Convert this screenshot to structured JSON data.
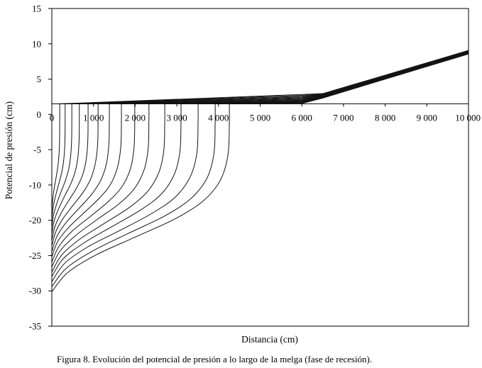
{
  "figure": {
    "caption": "Figura 8. Evolución del potencial de presión a lo largo de la melga (fase de recesión)."
  },
  "colors": {
    "line": "#141414",
    "axis": "#000000",
    "background": "#ffffff"
  },
  "chart_data": {
    "type": "line",
    "title": "",
    "xlabel": "Distancia (cm)",
    "ylabel": "Potencial de presión (cm)",
    "xlim": [
      0,
      10000
    ],
    "ylim": [
      -35,
      15
    ],
    "grid": false,
    "xticks": {
      "values": [
        0,
        1000,
        2000,
        3000,
        4000,
        5000,
        6000,
        7000,
        8000,
        9000,
        10000
      ],
      "labels": [
        "0",
        "1 000",
        "2 000",
        "3 000",
        "4 000",
        "5 000",
        "6 000",
        "7 000",
        "8 000",
        "9 000",
        "10 000"
      ]
    },
    "yticks": {
      "labels": [
        "15",
        "10",
        "5",
        "0",
        "-5",
        "-10",
        "-20",
        "-25",
        "-30",
        "-35"
      ]
    },
    "series": [
      {
        "x": [
          0,
          17,
          47,
          89,
          131,
          161,
          180,
          188,
          190,
          190,
          6000,
          6500,
          10000
        ],
        "y": [
          -17.1,
          -15.4,
          -13.7,
          -12.1,
          -10.5,
          -8.9,
          -7.0,
          -4.7,
          -1.8,
          0,
          1.47,
          1.6,
          8.4
        ]
      },
      {
        "x": [
          0,
          28,
          79,
          150,
          220,
          271,
          303,
          317,
          320,
          320,
          6000,
          6500,
          10000
        ],
        "y": [
          -18.4,
          -16.5,
          -14.8,
          -13.0,
          -11.3,
          -9.6,
          -7.5,
          -5.1,
          -2.0,
          0,
          1.33,
          1.55,
          8.36
        ]
      },
      {
        "x": [
          0,
          42,
          119,
          225,
          330,
          407,
          455,
          476,
          480,
          480,
          6000,
          6500,
          10000
        ],
        "y": [
          -19.5,
          -17.5,
          -15.7,
          -13.8,
          -12.0,
          -10.2,
          -8.0,
          -5.4,
          -2.1,
          0,
          1.19,
          1.5,
          8.32
        ]
      },
      {
        "x": [
          0,
          58,
          164,
          309,
          454,
          560,
          626,
          655,
          660,
          660,
          6000,
          6500,
          10000
        ],
        "y": [
          -20.5,
          -18.4,
          -16.5,
          -14.5,
          -12.6,
          -10.7,
          -8.4,
          -5.6,
          -2.2,
          0,
          1.06,
          1.45,
          8.28
        ]
      },
      {
        "x": [
          0,
          77,
          216,
          407,
          599,
          738,
          825,
          863,
          870,
          870,
          6000,
          6500,
          10000
        ],
        "y": [
          -21.5,
          -19.3,
          -17.3,
          -15.2,
          -13.2,
          -11.2,
          -8.8,
          -5.9,
          -2.3,
          0,
          0.94,
          1.4,
          8.24
        ]
      },
      {
        "x": [
          0,
          98,
          275,
          519,
          764,
          941,
          1052,
          1101,
          1110,
          1110,
          6000,
          6500,
          10000
        ],
        "y": [
          -22.4,
          -20.1,
          -18.0,
          -15.9,
          -13.8,
          -11.7,
          -9.1,
          -6.2,
          -2.4,
          0,
          0.82,
          1.35,
          8.2
        ]
      },
      {
        "x": [
          0,
          121,
          342,
          646,
          949,
          1170,
          1308,
          1369,
          1380,
          1380,
          6000,
          6500,
          10000
        ],
        "y": [
          -23.3,
          -20.9,
          -18.7,
          -16.5,
          -14.3,
          -12.1,
          -9.5,
          -6.4,
          -2.5,
          0,
          0.7,
          1.3,
          8.16
        ]
      },
      {
        "x": [
          0,
          147,
          414,
          782,
          1149,
          1416,
          1583,
          1657,
          1670,
          1670,
          6000,
          6500,
          10000
        ],
        "y": [
          -24.1,
          -21.6,
          -19.4,
          -17.1,
          -14.8,
          -12.6,
          -9.8,
          -6.6,
          -2.6,
          0,
          0.6,
          1.25,
          8.12
        ]
      },
      {
        "x": [
          0,
          175,
          494,
          931,
          1369,
          1688,
          1887,
          1974,
          1990,
          1990,
          6000,
          6500,
          10000
        ],
        "y": [
          -24.9,
          -22.4,
          -20.0,
          -17.7,
          -15.3,
          -13.0,
          -10.2,
          -6.8,
          -2.6,
          0,
          0.5,
          1.2,
          8.08
        ]
      },
      {
        "x": [
          0,
          205,
          578,
          1090,
          1603,
          1976,
          2209,
          2311,
          2330,
          2330,
          6000,
          6500,
          10000
        ],
        "y": [
          -25.7,
          -23.1,
          -20.7,
          -18.2,
          -15.8,
          -13.4,
          -10.5,
          -7.1,
          -2.7,
          0,
          0.4,
          1.15,
          8.04
        ]
      },
      {
        "x": [
          0,
          238,
          672,
          1268,
          1864,
          2298,
          2569,
          2688,
          2710,
          2710,
          6000,
          6500,
          10000
        ],
        "y": [
          -26.5,
          -23.8,
          -21.3,
          -18.8,
          -16.3,
          -13.8,
          -10.8,
          -7.3,
          -2.8,
          0,
          0.32,
          1.1,
          8.0
        ]
      },
      {
        "x": [
          0,
          273,
          769,
          1451,
          2133,
          2629,
          2939,
          3075,
          3100,
          3100,
          6000,
          6500,
          10000
        ],
        "y": [
          -27.2,
          -24.4,
          -21.9,
          -19.3,
          -16.7,
          -14.2,
          -11.1,
          -7.5,
          -2.9,
          0,
          0.24,
          1.05,
          7.96
        ]
      },
      {
        "x": [
          0,
          309,
          870,
          1643,
          2415,
          2976,
          3327,
          3482,
          3510,
          3510,
          6000,
          6500,
          10000
        ],
        "y": [
          -28.0,
          -25.1,
          -22.5,
          -19.9,
          -17.2,
          -14.6,
          -11.4,
          -7.7,
          -3.0,
          0,
          0.17,
          1.0,
          7.92
        ]
      },
      {
        "x": [
          0,
          345,
          972,
          1835,
          2697,
          3324,
          3716,
          3889,
          3920,
          3920,
          6000,
          6500,
          10000
        ],
        "y": [
          -28.8,
          -25.9,
          -23.2,
          -20.4,
          -17.7,
          -15.0,
          -11.8,
          -7.9,
          -3.1,
          0,
          0.1,
          0.95,
          7.88
        ]
      },
      {
        "x": [
          0,
          375,
          1057,
          1994,
          2931,
          3613,
          4038,
          4226,
          4260,
          4260,
          6000,
          6500,
          10000
        ],
        "y": [
          -29.6,
          -26.6,
          -23.8,
          -21.0,
          -18.2,
          -15.4,
          -12.1,
          -8.1,
          -3.1,
          0,
          0.05,
          0.9,
          7.84
        ]
      }
    ]
  }
}
